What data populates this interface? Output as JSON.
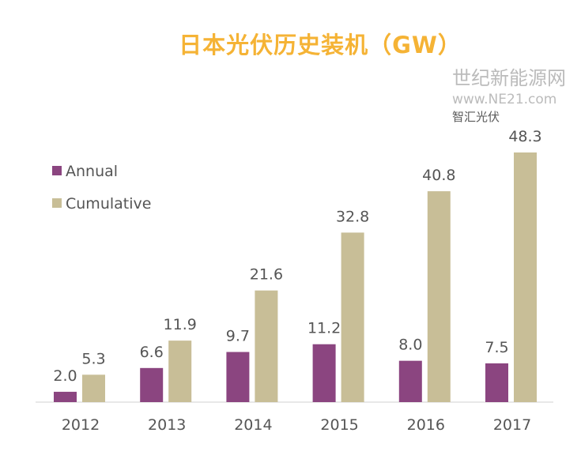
{
  "chart_data": {
    "type": "bar",
    "title": "日本光伏历史装机（GW）",
    "categories": [
      "2012",
      "2013",
      "2014",
      "2015",
      "2016",
      "2017"
    ],
    "series": [
      {
        "name": "Annual",
        "values": [
          2.0,
          6.6,
          9.7,
          11.2,
          8.0,
          7.5
        ],
        "color": "#8B4580"
      },
      {
        "name": "Cumulative",
        "values": [
          5.3,
          11.9,
          21.6,
          32.8,
          40.8,
          48.3
        ],
        "color": "#C8BE97"
      }
    ],
    "ylim": [
      0,
      50
    ],
    "grid": false,
    "legend": "top-left",
    "title_color": "#F5B335"
  },
  "watermark": {
    "line1": "世纪新能源网",
    "line2": "www.NE21.com",
    "line3": "智汇光伏"
  }
}
